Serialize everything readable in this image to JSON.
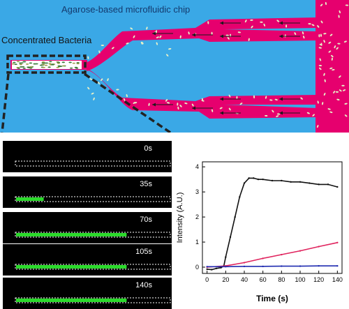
{
  "diagram": {
    "chip_label": "Agarose-based microfluidic chip",
    "bacteria_label": "Concentrated Bacteria",
    "colors": {
      "background": "#3aa8e6",
      "channel": "#e6006e",
      "arrow": "#1a1a1a",
      "cell_fill": "#e6f0c8"
    }
  },
  "frames": [
    {
      "time": "0s",
      "fill": 0.0
    },
    {
      "time": "35s",
      "fill": 0.18
    },
    {
      "time": "70s",
      "fill": 0.72
    },
    {
      "time": "105s",
      "fill": 0.72
    },
    {
      "time": "140s",
      "fill": 0.72
    }
  ],
  "chart_data": {
    "type": "line",
    "xlabel": "Time (s)",
    "ylabel": "Intensity (A.U.)",
    "xlim": [
      -5,
      145
    ],
    "ylim": [
      -0.25,
      4.2
    ],
    "xticks": [
      "0",
      "20",
      "40",
      "60",
      "80",
      "100",
      "120",
      "140"
    ],
    "yticks": [
      "0",
      "1",
      "2",
      "3",
      "4"
    ],
    "series": [
      {
        "color": "#111111",
        "x": [
          0,
          5,
          10,
          15,
          18,
          20,
          25,
          30,
          35,
          40,
          45,
          50,
          55,
          60,
          70,
          80,
          90,
          100,
          110,
          120,
          130,
          140
        ],
        "y": [
          -0.08,
          -0.1,
          -0.05,
          -0.02,
          0.05,
          0.4,
          1.2,
          2.0,
          2.8,
          3.35,
          3.55,
          3.55,
          3.5,
          3.5,
          3.45,
          3.45,
          3.4,
          3.4,
          3.35,
          3.3,
          3.3,
          3.2
        ]
      },
      {
        "color": "#e0245e",
        "x": [
          0,
          20,
          40,
          60,
          80,
          100,
          120,
          140
        ],
        "y": [
          0.0,
          0.05,
          0.18,
          0.35,
          0.5,
          0.65,
          0.82,
          0.98
        ]
      },
      {
        "color": "#1f2bb0",
        "x": [
          0,
          20,
          40,
          60,
          80,
          100,
          120,
          140
        ],
        "y": [
          0.02,
          0.02,
          0.03,
          0.03,
          0.04,
          0.04,
          0.05,
          0.05
        ]
      }
    ]
  }
}
